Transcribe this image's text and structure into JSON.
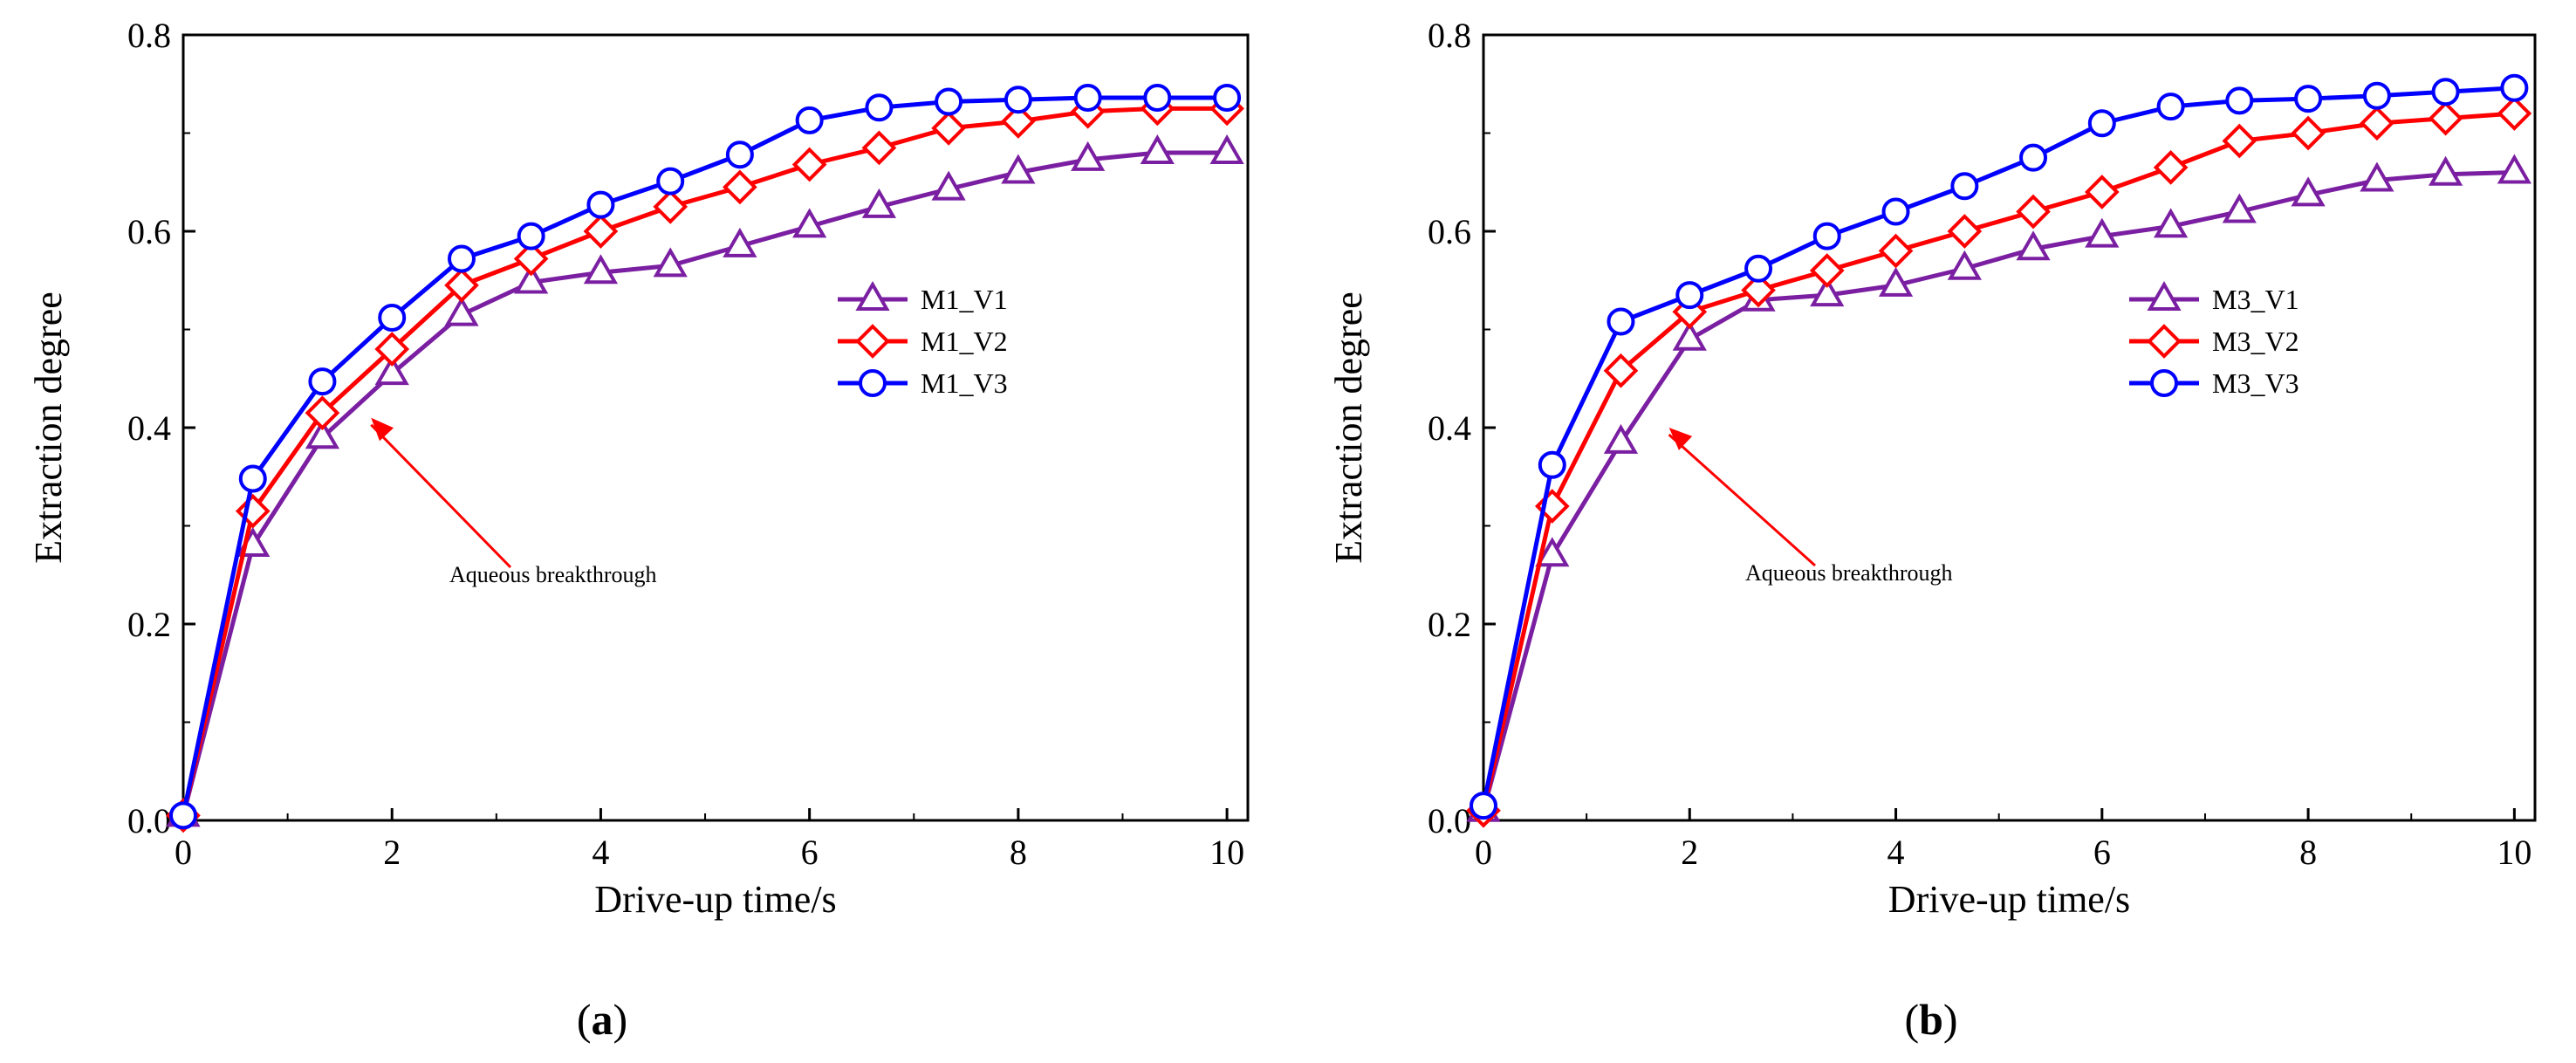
{
  "chart_data": [
    {
      "type": "line",
      "panel_label": "a",
      "xlabel": "Drive-up time/s",
      "ylabel": "Extraction degree",
      "xlim": [
        0,
        10.2
      ],
      "ylim": [
        0,
        0.8
      ],
      "xticks": [
        0,
        2,
        4,
        6,
        8,
        10
      ],
      "yticks": [
        0.0,
        0.2,
        0.4,
        0.6,
        0.8
      ],
      "xtick_labels": [
        "0",
        "2",
        "4",
        "6",
        "8",
        "10"
      ],
      "ytick_labels": [
        "0.0",
        "0.2",
        "0.4",
        "0.6",
        "0.8"
      ],
      "grid": false,
      "legend_position": "right",
      "annotation": {
        "text": "Aqueous breakthrough",
        "x": 1.8,
        "y": 0.41
      },
      "x": [
        0,
        0.667,
        1.333,
        2.0,
        2.667,
        3.333,
        4.0,
        4.667,
        5.333,
        6.0,
        6.667,
        7.333,
        8.0,
        8.667,
        9.333,
        10.0
      ],
      "series": [
        {
          "name": "M1_V1",
          "marker": "triangle",
          "color": "#7b1fa2",
          "values": [
            0.005,
            0.28,
            0.39,
            0.455,
            0.515,
            0.548,
            0.558,
            0.565,
            0.585,
            0.605,
            0.625,
            0.643,
            0.66,
            0.673,
            0.68,
            0.68
          ]
        },
        {
          "name": "M1_V2",
          "marker": "diamond",
          "color": "#ff0000",
          "values": [
            0.005,
            0.315,
            0.415,
            0.48,
            0.545,
            0.572,
            0.6,
            0.625,
            0.645,
            0.668,
            0.685,
            0.705,
            0.712,
            0.722,
            0.725,
            0.725
          ]
        },
        {
          "name": "M1_V3",
          "marker": "circle",
          "color": "#0000ff",
          "values": [
            0.005,
            0.348,
            0.447,
            0.512,
            0.572,
            0.595,
            0.627,
            0.651,
            0.678,
            0.713,
            0.726,
            0.732,
            0.734,
            0.736,
            0.736,
            0.736
          ]
        }
      ]
    },
    {
      "type": "line",
      "panel_label": "b",
      "xlabel": "Drive-up time/s",
      "ylabel": "Extraction degree",
      "xlim": [
        0,
        10.2
      ],
      "ylim": [
        0,
        0.8
      ],
      "xticks": [
        0,
        2,
        4,
        6,
        8,
        10
      ],
      "yticks": [
        0.0,
        0.2,
        0.4,
        0.6,
        0.8
      ],
      "xtick_labels": [
        "0",
        "2",
        "4",
        "6",
        "8",
        "10"
      ],
      "ytick_labels": [
        "0.0",
        "0.2",
        "0.4",
        "0.6",
        "0.8"
      ],
      "grid": false,
      "legend_position": "right",
      "annotation": {
        "text": "Aqueous breakthrough",
        "x": 1.8,
        "y": 0.4
      },
      "x": [
        0,
        0.667,
        1.333,
        2.0,
        2.667,
        3.333,
        4.0,
        4.667,
        5.333,
        6.0,
        6.667,
        7.333,
        8.0,
        8.667,
        9.333,
        10.0
      ],
      "series": [
        {
          "name": "M3_V1",
          "marker": "triangle",
          "color": "#7b1fa2",
          "values": [
            0.01,
            0.27,
            0.385,
            0.49,
            0.53,
            0.535,
            0.545,
            0.562,
            0.582,
            0.595,
            0.605,
            0.62,
            0.637,
            0.652,
            0.658,
            0.66
          ]
        },
        {
          "name": "M3_V2",
          "marker": "diamond",
          "color": "#ff0000",
          "values": [
            0.01,
            0.32,
            0.458,
            0.518,
            0.54,
            0.56,
            0.58,
            0.6,
            0.62,
            0.64,
            0.665,
            0.692,
            0.7,
            0.71,
            0.715,
            0.72
          ]
        },
        {
          "name": "M3_V3",
          "marker": "circle",
          "color": "#0000ff",
          "values": [
            0.015,
            0.362,
            0.508,
            0.535,
            0.562,
            0.595,
            0.62,
            0.646,
            0.675,
            0.71,
            0.727,
            0.733,
            0.735,
            0.738,
            0.742,
            0.746
          ]
        }
      ]
    }
  ]
}
